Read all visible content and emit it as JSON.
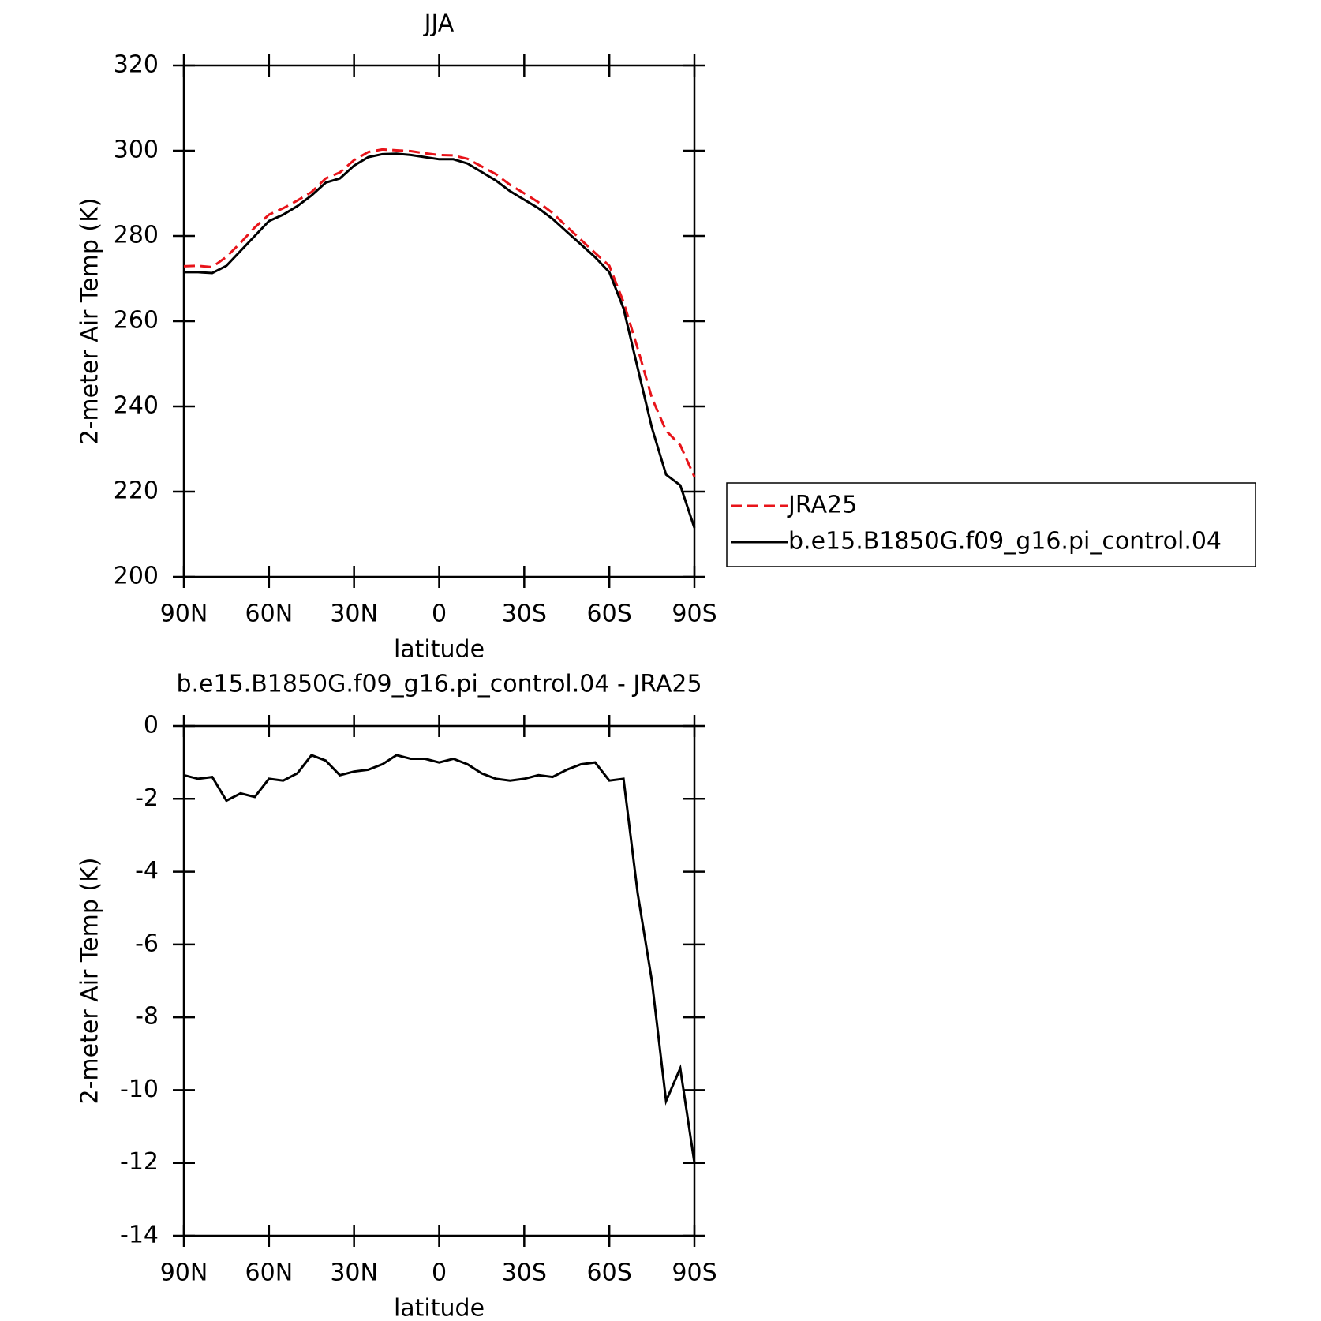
{
  "chart_data": [
    {
      "type": "line",
      "title": "JJA",
      "xlabel": "latitude",
      "ylabel": "2-meter Air Temp (K)",
      "x": [
        90,
        85,
        80,
        75,
        70,
        65,
        60,
        55,
        50,
        45,
        40,
        35,
        30,
        25,
        20,
        15,
        10,
        5,
        0,
        -5,
        -10,
        -15,
        -20,
        -25,
        -30,
        -35,
        -40,
        -45,
        -50,
        -55,
        -60,
        -65,
        -70,
        -75,
        -80,
        -85,
        -90
      ],
      "series": [
        {
          "name": "JRA25",
          "color": "#e8141a",
          "dash": true,
          "values": [
            272.9,
            273.0,
            272.7,
            275.1,
            278.4,
            282.0,
            285.0,
            286.5,
            288.3,
            290.3,
            293.5,
            294.9,
            297.8,
            299.7,
            300.3,
            300.1,
            299.9,
            299.4,
            299.0,
            298.9,
            298.1,
            296.3,
            294.5,
            292.0,
            290.0,
            287.9,
            285.4,
            282.2,
            279.1,
            276.0,
            273.0,
            264.5,
            253.6,
            242.0,
            234.3,
            230.9,
            223.5
          ]
        },
        {
          "name": "b.e15.B1850G.f09_g16.pi_control.04",
          "color": "#000000",
          "dash": false,
          "values": [
            271.5,
            271.5,
            271.3,
            273.0,
            276.5,
            280.0,
            283.5,
            285.0,
            287.0,
            289.5,
            292.5,
            293.5,
            296.5,
            298.5,
            299.2,
            299.3,
            299.0,
            298.5,
            298.0,
            298.0,
            297.0,
            295.0,
            293.0,
            290.5,
            288.5,
            286.5,
            284.0,
            281.0,
            278.0,
            275.0,
            271.5,
            263.0,
            249.0,
            235.0,
            224.0,
            221.5,
            211.5
          ]
        }
      ],
      "xlim": [
        90,
        -90
      ],
      "xticks": [
        {
          "value": 90,
          "label": "90N"
        },
        {
          "value": 60,
          "label": "60N"
        },
        {
          "value": 30,
          "label": "30N"
        },
        0,
        {
          "value": -30,
          "label": "30S"
        },
        {
          "value": -60,
          "label": "60S"
        },
        {
          "value": -90,
          "label": "90S"
        }
      ],
      "ylim": [
        200,
        320
      ],
      "yticks": [
        200,
        220,
        240,
        260,
        280,
        300,
        320
      ],
      "legend": "right"
    },
    {
      "type": "line",
      "title": "b.e15.B1850G.f09_g16.pi_control.04 - JRA25",
      "xlabel": "latitude",
      "ylabel": "2-meter Air Temp (K)",
      "x": [
        90,
        85,
        80,
        75,
        70,
        65,
        60,
        55,
        50,
        45,
        40,
        35,
        30,
        25,
        20,
        15,
        10,
        5,
        0,
        -5,
        -10,
        -15,
        -20,
        -25,
        -30,
        -35,
        -40,
        -45,
        -50,
        -55,
        -60,
        -65,
        -70,
        -75,
        -80,
        -85,
        -90
      ],
      "series": [
        {
          "color": "#000000",
          "dash": false,
          "values": [
            -1.35,
            -1.45,
            -1.4,
            -2.05,
            -1.85,
            -1.95,
            -1.45,
            -1.5,
            -1.3,
            -0.8,
            -0.95,
            -1.35,
            -1.25,
            -1.2,
            -1.05,
            -0.8,
            -0.9,
            -0.9,
            -1.0,
            -0.9,
            -1.05,
            -1.3,
            -1.45,
            -1.5,
            -1.45,
            -1.35,
            -1.4,
            -1.2,
            -1.05,
            -1.0,
            -1.5,
            -1.45,
            -4.6,
            -7.0,
            -10.3,
            -9.4,
            -12.0
          ]
        }
      ],
      "xlim": [
        90,
        -90
      ],
      "xticks": [
        {
          "value": 90,
          "label": "90N"
        },
        {
          "value": 60,
          "label": "60N"
        },
        {
          "value": 30,
          "label": "30N"
        },
        0,
        {
          "value": -30,
          "label": "30S"
        },
        {
          "value": -60,
          "label": "60S"
        },
        {
          "value": -90,
          "label": "90S"
        }
      ],
      "ylim": [
        -14,
        0
      ],
      "yticks": [
        -14,
        -12,
        -10,
        -8,
        -6,
        -4,
        -2,
        0
      ]
    }
  ]
}
